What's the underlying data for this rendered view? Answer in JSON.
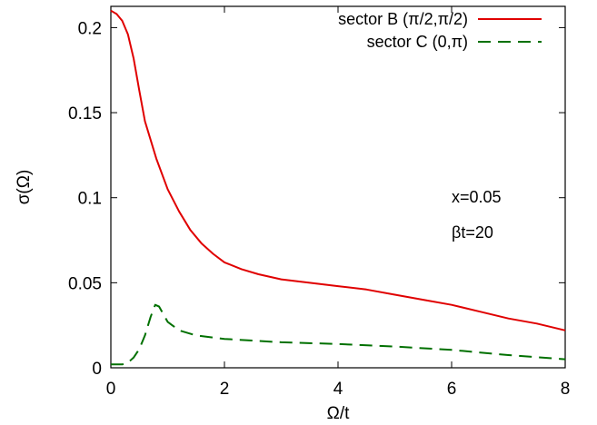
{
  "chart_data": {
    "type": "line",
    "xlabel": "Ω/t",
    "ylabel": "σ(Ω)",
    "xlim": [
      0,
      8
    ],
    "ylim": [
      0,
      0.2125
    ],
    "x_ticks": [
      "0",
      "2",
      "4",
      "6",
      "8"
    ],
    "y_ticks": [
      "0",
      "0.05",
      "0.1",
      "0.15",
      "0.2"
    ],
    "legend_position": "top-right",
    "annotations": [
      "x=0.05",
      "βt=20"
    ],
    "series": [
      {
        "name": "sector B (π/2,π/2)",
        "color": "#e00000",
        "style": "solid",
        "points": [
          [
            0,
            0.21
          ],
          [
            0.1,
            0.208
          ],
          [
            0.2,
            0.204
          ],
          [
            0.3,
            0.196
          ],
          [
            0.4,
            0.182
          ],
          [
            0.5,
            0.163
          ],
          [
            0.6,
            0.145
          ],
          [
            0.8,
            0.123
          ],
          [
            1.0,
            0.105
          ],
          [
            1.2,
            0.092
          ],
          [
            1.4,
            0.081
          ],
          [
            1.6,
            0.073
          ],
          [
            1.8,
            0.067
          ],
          [
            2.0,
            0.062
          ],
          [
            2.3,
            0.058
          ],
          [
            2.6,
            0.055
          ],
          [
            3.0,
            0.052
          ],
          [
            3.5,
            0.05
          ],
          [
            4.0,
            0.048
          ],
          [
            4.5,
            0.046
          ],
          [
            5.0,
            0.043
          ],
          [
            5.5,
            0.04
          ],
          [
            6.0,
            0.037
          ],
          [
            6.5,
            0.033
          ],
          [
            7.0,
            0.029
          ],
          [
            7.5,
            0.026
          ],
          [
            8.0,
            0.022
          ]
        ]
      },
      {
        "name": "sector C (0,π)",
        "color": "#007000",
        "style": "dashed",
        "points": [
          [
            0,
            0.002
          ],
          [
            0.2,
            0.002
          ],
          [
            0.3,
            0.003
          ],
          [
            0.4,
            0.006
          ],
          [
            0.5,
            0.011
          ],
          [
            0.6,
            0.019
          ],
          [
            0.7,
            0.03
          ],
          [
            0.78,
            0.037
          ],
          [
            0.85,
            0.036
          ],
          [
            1.0,
            0.027
          ],
          [
            1.2,
            0.022
          ],
          [
            1.5,
            0.019
          ],
          [
            2.0,
            0.017
          ],
          [
            3.0,
            0.015
          ],
          [
            4.0,
            0.014
          ],
          [
            5.0,
            0.0125
          ],
          [
            6.0,
            0.0105
          ],
          [
            7.0,
            0.0075
          ],
          [
            8.0,
            0.005
          ]
        ]
      }
    ]
  }
}
